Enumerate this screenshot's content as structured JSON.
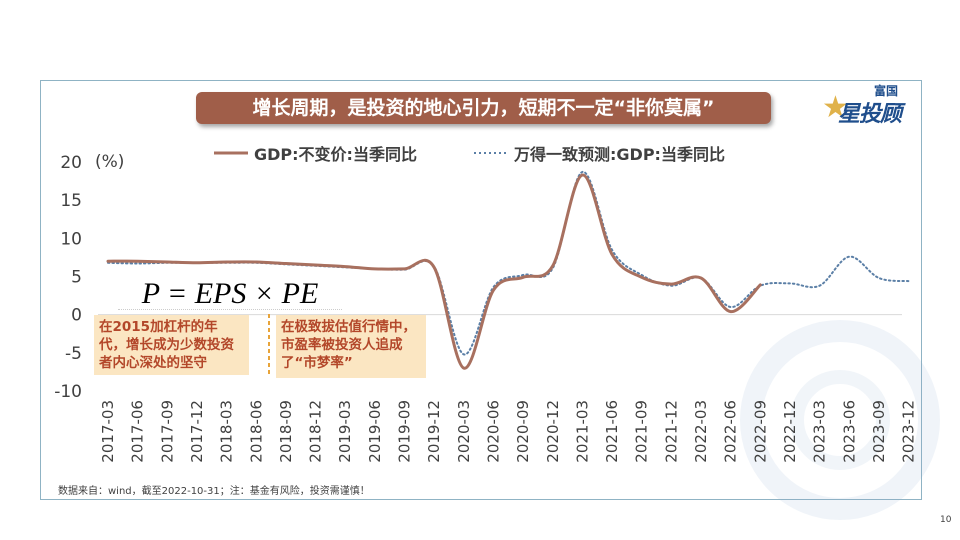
{
  "slide": {
    "title": "增长周期，是投资的地心引力，短期不一定“非你莫属”",
    "logo_small": "富国",
    "logo_big": "星投顾",
    "formula": "P = EPS × PE",
    "annotation_left": "在2015加杠杆的年代，增长成为少数投资者内心深处的坚守",
    "annotation_right": "在极致拔估值行情中，市盈率被投资人追成了“市梦率”",
    "footer": "数据来自：wind，截至2022-10-31；注：基金有风险，投资需谨慎！",
    "page_number": "10"
  },
  "colors": {
    "actual": "#a8705f",
    "forecast": "#5b7fa6",
    "banner": "#a05e49",
    "annotation_bg": "#fbe6c2",
    "annotation_text": "#b3472a"
  },
  "chart_data": {
    "type": "line",
    "unit_label": "(%)",
    "ylim": [
      -10,
      20
    ],
    "yticks": [
      20,
      15,
      10,
      5,
      0,
      -5,
      -10
    ],
    "grid": false,
    "legend_position": "top",
    "x": [
      "2017-03",
      "2017-06",
      "2017-09",
      "2017-12",
      "2018-03",
      "2018-06",
      "2018-09",
      "2018-12",
      "2019-03",
      "2019-06",
      "2019-09",
      "2019-12",
      "2020-03",
      "2020-06",
      "2020-09",
      "2020-12",
      "2021-03",
      "2021-06",
      "2021-09",
      "2021-12",
      "2022-03",
      "2022-06",
      "2022-09",
      "2022-12",
      "2023-03",
      "2023-06",
      "2023-09",
      "2023-12"
    ],
    "series": [
      {
        "name": "GDP:不变价:当季同比",
        "style": "solid",
        "values": [
          7.0,
          7.0,
          6.9,
          6.8,
          6.9,
          6.9,
          6.7,
          6.5,
          6.3,
          6.0,
          6.0,
          6.2,
          -7.0,
          3.2,
          4.9,
          6.4,
          18.3,
          7.9,
          4.9,
          4.0,
          4.8,
          0.4,
          3.9,
          null,
          null,
          null,
          null,
          null
        ]
      },
      {
        "name": "万得一致预测:GDP:当季同比",
        "style": "dotted",
        "values": [
          6.8,
          6.7,
          6.8,
          6.8,
          6.8,
          6.8,
          6.6,
          6.4,
          6.2,
          6.0,
          5.9,
          6.3,
          -5.2,
          3.6,
          5.2,
          6.1,
          18.7,
          8.5,
          5.2,
          3.8,
          4.8,
          1.0,
          3.8,
          4.1,
          3.8,
          7.6,
          4.8,
          4.4
        ]
      }
    ]
  }
}
